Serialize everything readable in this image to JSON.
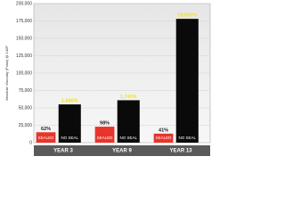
{
  "chart_data": {
    "type": "bar",
    "y_label": "Absolute Viscosity (Poise) @ 140F",
    "categories": [
      "YEAR 3",
      "YEAR 9",
      "YEAR 13"
    ],
    "series": [
      {
        "name": "SEALED",
        "color": "#e8352c",
        "label_color": "#222222",
        "values": [
          15000,
          23000,
          13000
        ],
        "bar_labels": [
          "62%",
          "98%",
          "41%"
        ]
      },
      {
        "name": "NO SEAL",
        "color": "#0a0a0a",
        "label_color": "#f2e21c",
        "values": [
          55000,
          61000,
          178000
        ],
        "bar_labels": [
          "1,680%",
          "1,743%",
          "19,900%"
        ]
      }
    ],
    "ylim": [
      0,
      200000
    ],
    "yticks": [
      0,
      {
        "value": 25000,
        "label": "25,000"
      },
      {
        "value": 50000,
        "label": "50,000"
      },
      {
        "value": 75000,
        "label": "75,000"
      },
      {
        "value": 100000,
        "label": "100,000"
      },
      {
        "value": 125000,
        "label": "125,000"
      },
      {
        "value": 150000,
        "label": "150,000"
      },
      {
        "value": 175000,
        "label": "175,000"
      },
      {
        "value": 200000,
        "label": "200,000"
      }
    ],
    "grid": true
  }
}
